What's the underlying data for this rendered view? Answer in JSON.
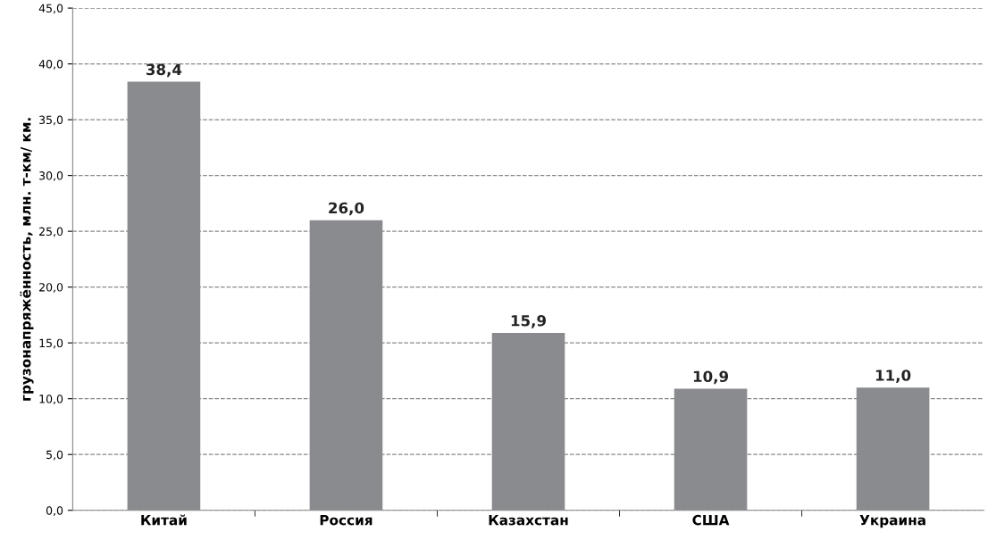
{
  "chart_data": {
    "type": "bar",
    "ylabel": "грузонапряжённость, млн. т-км/ км.",
    "categories": [
      "Китай",
      "Россия",
      "Казахстан",
      "США",
      "Украина"
    ],
    "values": [
      38.4,
      26.0,
      15.9,
      10.9,
      11.0
    ],
    "value_labels": [
      "38,4",
      "26,0",
      "15,9",
      "10,9",
      "11,0"
    ],
    "color": "#8a8b8f",
    "ylim": [
      0,
      45
    ],
    "yticks": [
      {
        "value": 0,
        "label": "0,0"
      },
      {
        "value": 5,
        "label": "5,0"
      },
      {
        "value": 10,
        "label": "10,0"
      },
      {
        "value": 15,
        "label": "15,0"
      },
      {
        "value": 20,
        "label": "20,0"
      },
      {
        "value": 25,
        "label": "25,0"
      },
      {
        "value": 30,
        "label": "30,0"
      },
      {
        "value": 35,
        "label": "35,0"
      },
      {
        "value": 40,
        "label": "40,0"
      },
      {
        "value": 45,
        "label": "45,0"
      }
    ],
    "grid": "y",
    "legend": false
  }
}
